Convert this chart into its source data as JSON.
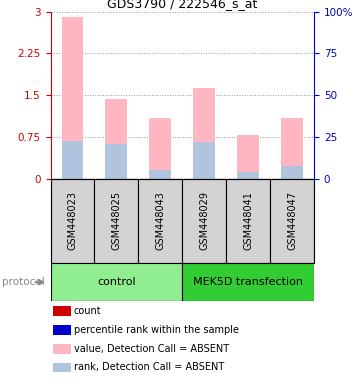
{
  "title": "GDS3790 / 222546_s_at",
  "samples": [
    "GSM448023",
    "GSM448025",
    "GSM448043",
    "GSM448029",
    "GSM448041",
    "GSM448047"
  ],
  "value_absent": [
    2.9,
    1.42,
    1.08,
    1.62,
    0.78,
    1.08
  ],
  "rank_absent": [
    0.68,
    0.62,
    0.15,
    0.65,
    0.12,
    0.22
  ],
  "left_ylim": [
    0,
    3
  ],
  "right_ylim": [
    0,
    100
  ],
  "left_yticks": [
    0,
    0.75,
    1.5,
    2.25,
    3
  ],
  "right_yticks": [
    0,
    25,
    50,
    75,
    100
  ],
  "left_tick_labels": [
    "0",
    "0.75",
    "1.5",
    "2.25",
    "3"
  ],
  "right_tick_labels": [
    "0",
    "25",
    "50",
    "75",
    "100%"
  ],
  "bar_width": 0.5,
  "color_value_absent": "#FFB6C1",
  "color_rank_absent": "#B0C4DE",
  "color_count": "#CC0000",
  "color_rank_dot": "#0000CC",
  "control_color": "#90EE90",
  "mek_color": "#32CD32",
  "sample_bg": "#D3D3D3",
  "legend_labels": [
    "count",
    "percentile rank within the sample",
    "value, Detection Call = ABSENT",
    "rank, Detection Call = ABSENT"
  ],
  "legend_colors": [
    "#CC0000",
    "#0000CC",
    "#FFB6C1",
    "#B0C4DE"
  ],
  "protocol_label": "protocol",
  "title_fontsize": 9,
  "tick_fontsize": 7.5,
  "label_fontsize": 7,
  "legend_fontsize": 7,
  "axis_left_color": "#CC0000",
  "axis_right_color": "#0000CC",
  "grid_color": "#999999",
  "bg_color": "#ffffff"
}
